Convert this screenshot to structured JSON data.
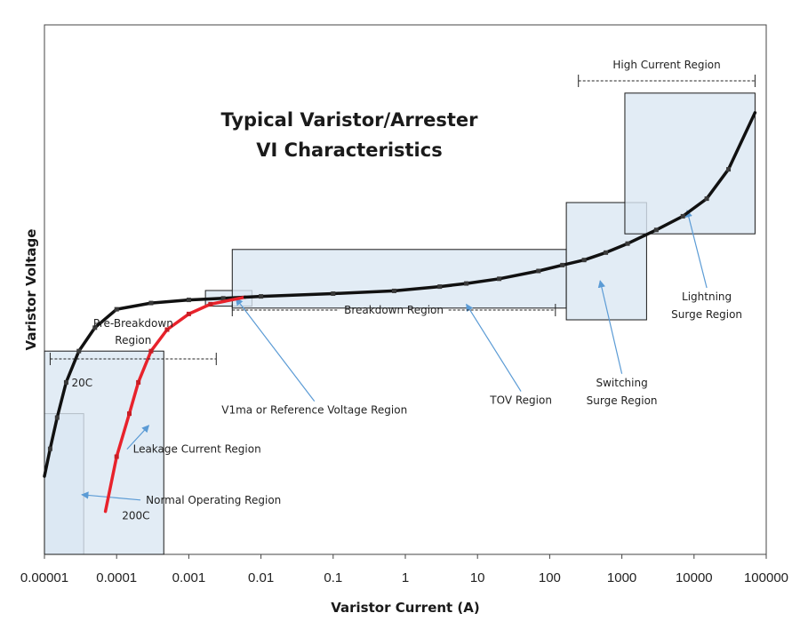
{
  "chart_data": {
    "type": "line",
    "title_lines": [
      "Typical Varistor/Arrester",
      "VI Characteristics"
    ],
    "xlabel": "Varistor Current (A)",
    "ylabel": "Varistor Voltage",
    "x_scale": "log",
    "xlim": [
      1e-05,
      100000
    ],
    "x_ticks": [
      {
        "value": 1e-05,
        "label": "0.00001"
      },
      {
        "value": 0.0001,
        "label": "0.0001"
      },
      {
        "value": 0.001,
        "label": "0.001"
      },
      {
        "value": 0.01,
        "label": "0.01"
      },
      {
        "value": 0.1,
        "label": "0.1"
      },
      {
        "value": 1,
        "label": "1"
      },
      {
        "value": 10,
        "label": "10"
      },
      {
        "value": 100,
        "label": "100"
      },
      {
        "value": 1000,
        "label": "1000"
      },
      {
        "value": 10000,
        "label": "10000"
      },
      {
        "value": 100000,
        "label": "100000"
      }
    ],
    "y_ticks_shown": false,
    "grid": false,
    "series": [
      {
        "name": "20C",
        "color": "#111111",
        "points": [
          {
            "x": 1e-05,
            "y": 0.2
          },
          {
            "x": 1.2e-05,
            "y": 0.27
          },
          {
            "x": 1.5e-05,
            "y": 0.35
          },
          {
            "x": 2e-05,
            "y": 0.44
          },
          {
            "x": 3e-05,
            "y": 0.52
          },
          {
            "x": 5e-05,
            "y": 0.58
          },
          {
            "x": 0.0001,
            "y": 0.627
          },
          {
            "x": 0.0003,
            "y": 0.643
          },
          {
            "x": 0.001,
            "y": 0.651
          },
          {
            "x": 0.003,
            "y": 0.655
          },
          {
            "x": 0.006,
            "y": 0.658
          }
        ]
      },
      {
        "name": "200C",
        "color": "#e8222b",
        "points": [
          {
            "x": 7e-05,
            "y": 0.11
          },
          {
            "x": 0.0001,
            "y": 0.25
          },
          {
            "x": 0.00015,
            "y": 0.36
          },
          {
            "x": 0.0002,
            "y": 0.44
          },
          {
            "x": 0.0003,
            "y": 0.52
          },
          {
            "x": 0.0005,
            "y": 0.575
          },
          {
            "x": 0.001,
            "y": 0.615
          },
          {
            "x": 0.002,
            "y": 0.64
          },
          {
            "x": 0.006,
            "y": 0.658
          }
        ]
      },
      {
        "name": "",
        "color": "#111111",
        "points": [
          {
            "x": 0.006,
            "y": 0.658
          },
          {
            "x": 0.01,
            "y": 0.66
          },
          {
            "x": 0.1,
            "y": 0.667
          },
          {
            "x": 0.7,
            "y": 0.674
          },
          {
            "x": 3,
            "y": 0.685
          },
          {
            "x": 7,
            "y": 0.693
          },
          {
            "x": 20,
            "y": 0.705
          },
          {
            "x": 70,
            "y": 0.725
          },
          {
            "x": 150,
            "y": 0.74
          },
          {
            "x": 300,
            "y": 0.753
          },
          {
            "x": 600,
            "y": 0.772
          },
          {
            "x": 1200,
            "y": 0.795
          },
          {
            "x": 3000,
            "y": 0.83
          },
          {
            "x": 7000,
            "y": 0.865
          },
          {
            "x": 15000,
            "y": 0.91
          },
          {
            "x": 30000,
            "y": 0.985
          },
          {
            "x": 70000,
            "y": 1.13
          }
        ]
      }
    ],
    "series_labels": [
      {
        "text": "20C",
        "x": 2e-05,
        "y": 0.43
      },
      {
        "text": "200C",
        "x": 0.0001,
        "y": 0.09
      }
    ],
    "regions": [
      {
        "name": "Normal Operating Region",
        "x": [
          1e-05,
          3.5e-05
        ],
        "y": [
          0,
          0.36
        ]
      },
      {
        "name": "Leakage Current Region",
        "x": [
          1e-05,
          0.00045
        ],
        "y": [
          0,
          0.52
        ]
      },
      {
        "name": "V1ma or Reference Voltage Region",
        "x": [
          0.0017,
          0.0075
        ],
        "y": [
          0.635,
          0.675
        ]
      },
      {
        "name": "TOV Region",
        "x": [
          0.004,
          170
        ],
        "y": [
          0.63,
          0.78
        ]
      },
      {
        "name": "Switching Surge Region",
        "x": [
          170,
          2200
        ],
        "y": [
          0.6,
          0.9
        ]
      },
      {
        "name": "Lightning Surge Region",
        "x": [
          1100,
          70000
        ],
        "y": [
          0.82,
          1.18
        ]
      }
    ],
    "annotations": [
      {
        "text": "Normal Operating Region",
        "x": 0.0022,
        "y": 0.13
      },
      {
        "text": "Leakage Current Region",
        "x": 0.0013,
        "y": 0.26
      },
      {
        "text": "V1ma or Reference Voltage Region",
        "x": 0.055,
        "y": 0.36
      },
      {
        "text": "TOV Region",
        "x": 40,
        "y": 0.385
      },
      {
        "text": "Switching Surge Region",
        "x": 1000,
        "y": 0.43
      },
      {
        "text": "Lightning Surge Region",
        "x": 15000,
        "y": 0.65
      }
    ],
    "ranges": [
      {
        "name": "Pre-Breakdown Region",
        "x": [
          1.2e-05,
          0.0024
        ]
      },
      {
        "name": "Breakdown Region",
        "x": [
          0.004,
          120
        ]
      },
      {
        "name": "High Current Region",
        "x": [
          250,
          70000
        ]
      }
    ]
  }
}
